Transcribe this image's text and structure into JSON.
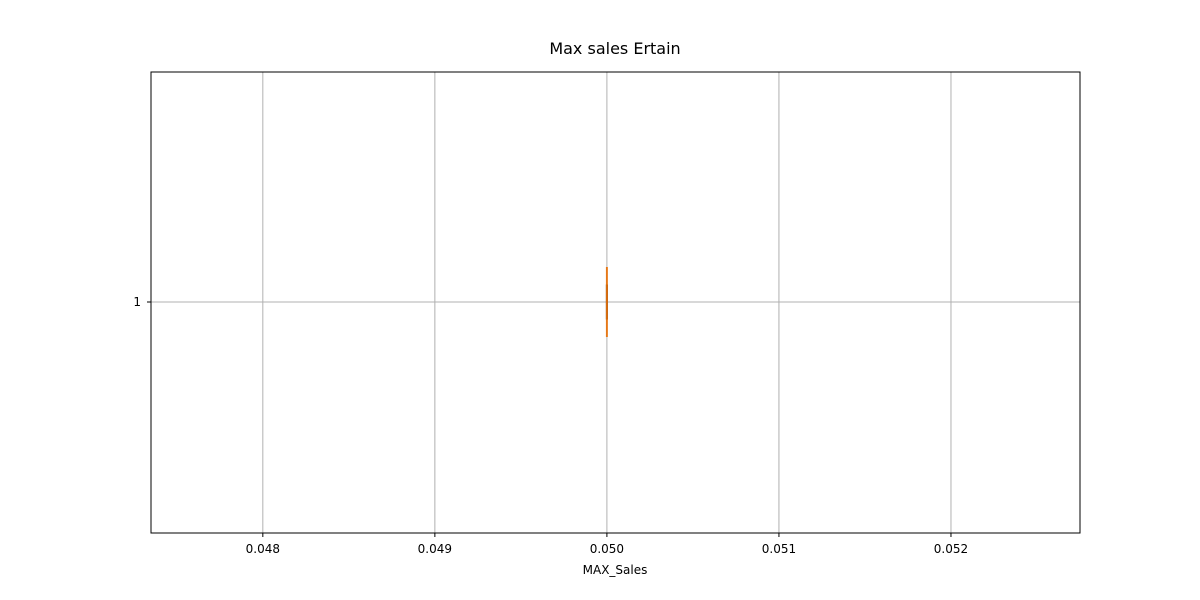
{
  "chart_data": {
    "type": "box",
    "title": "Max sales Ertain",
    "xlabel": "MAX_Sales",
    "ylabel": "",
    "orientation": "horizontal",
    "xlim": [
      0.04735,
      0.05275
    ],
    "x_ticks": [
      0.048,
      0.049,
      0.05,
      0.051,
      0.052
    ],
    "x_tick_labels": [
      "0.048",
      "0.049",
      "0.050",
      "0.051",
      "0.052"
    ],
    "y_tick_labels": [
      "1"
    ],
    "grid": true,
    "boxes": [
      {
        "category": "1",
        "min": 0.05,
        "q1": 0.05,
        "median": 0.05,
        "q3": 0.05,
        "max": 0.05
      }
    ],
    "colors": {
      "box": "#000000",
      "median": "#ff7f0e",
      "grid": "#b0b0b0"
    }
  }
}
